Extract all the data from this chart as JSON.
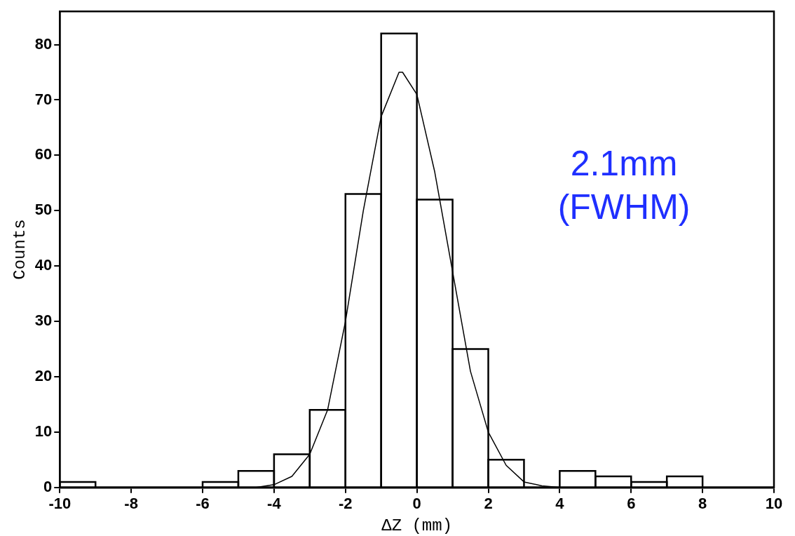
{
  "chart_data": {
    "type": "histogram",
    "xlabel": "ΔZ (mm)",
    "ylabel": "Counts",
    "bins": [
      -10,
      -9,
      -8,
      -7,
      -6,
      -5,
      -4,
      -3,
      -2,
      -1,
      0,
      1,
      2,
      3,
      4,
      5,
      6,
      7,
      8,
      9,
      10
    ],
    "values": [
      1,
      0,
      0,
      0,
      1,
      3,
      6,
      14,
      53,
      82,
      52,
      25,
      5,
      0,
      3,
      2,
      1,
      2,
      0,
      0
    ],
    "color": "#000000",
    "series": [
      {
        "type": "line",
        "color": "#000000",
        "x": [
          -4.5,
          -4,
          -3.5,
          -3,
          -2.5,
          -2,
          -1.5,
          -1,
          -0.5,
          -0.4,
          0,
          0.5,
          1,
          1.5,
          2,
          2.5,
          3,
          3.5,
          4
        ],
        "values": [
          0,
          0.5,
          2,
          6,
          14,
          30,
          50,
          67,
          75,
          75,
          71,
          57,
          39,
          21,
          10,
          4,
          1,
          0.3,
          0
        ]
      }
    ],
    "annotations": [
      "2.1mm",
      "(FWHM)"
    ],
    "xlim": [
      -10,
      10
    ],
    "xticks": [
      -10,
      -8,
      -6,
      -4,
      -2,
      0,
      2,
      4,
      6,
      8,
      10
    ],
    "ylim": [
      0,
      86
    ],
    "yticks": [
      0,
      10,
      20,
      30,
      40,
      50,
      60,
      70,
      80
    ],
    "grid": false,
    "legend": false,
    "marker": "none"
  }
}
